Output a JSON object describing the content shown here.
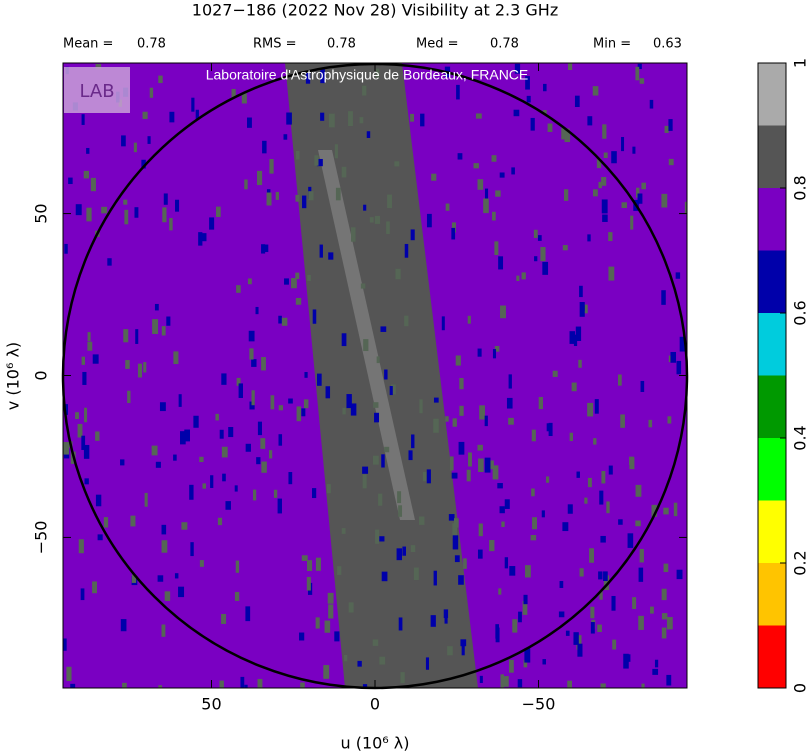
{
  "chart_data": {
    "type": "visibility-map",
    "title": "1027−186  (2022 Nov 28)   Visibility at  2.3 GHz",
    "stats": [
      {
        "label": "Mean =",
        "value": 0.78
      },
      {
        "label": "RMS =",
        "value": 0.78
      },
      {
        "label": "Med =",
        "value": 0.78
      },
      {
        "label": "Min =",
        "value": 0.63
      }
    ],
    "watermark": "Laboratoire d'Astrophysique de Bordeaux, FRANCE",
    "logo": "LAB",
    "xlabel": "u  (10⁶ λ)",
    "ylabel": "v  (10⁶ λ)",
    "xlim": [
      95.4,
      -95.4
    ],
    "ylim": [
      -96.5,
      96.5
    ],
    "xticks": [
      50,
      0,
      {
        "value": -50,
        "label": "−50"
      }
    ],
    "yticks": [
      50,
      0,
      {
        "value": -50,
        "label": "−50"
      }
    ],
    "colorbar": {
      "bins": [
        0,
        0.1,
        0.2,
        0.3,
        0.4,
        0.5,
        0.6,
        0.7,
        0.8,
        0.9,
        1
      ],
      "colors": [
        "#ff0000",
        "#ffc400",
        "#ffff00",
        "#00ff00",
        "#009900",
        "#00ccdd",
        "#0000aa",
        "#7a00c2",
        "#555555",
        "#aaaaaa"
      ],
      "ticks": [
        0,
        0.2,
        0.4,
        0.6,
        0.8,
        1
      ]
    }
  }
}
